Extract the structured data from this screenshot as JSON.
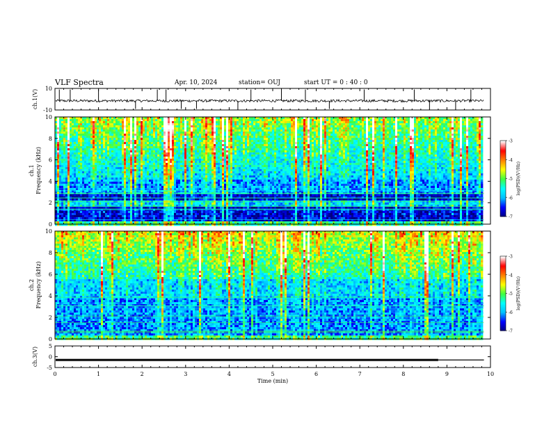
{
  "header": {
    "title": "VLF Spectra",
    "date": "Apr. 10, 2024",
    "station": "station= OUJ",
    "start": "start  UT =   0 : 40 : 0"
  },
  "chart_data": [
    {
      "type": "line",
      "panel": "ch1-waveform",
      "ylabel": "ch.1(V)",
      "ylim": [
        -10,
        10
      ],
      "yticks": [
        "10",
        "-10"
      ],
      "xlim": [
        0,
        10
      ],
      "baseline": -1.5,
      "noise_amplitude": 1.2,
      "spike_minutes": [
        0.1,
        0.35,
        1.0,
        1.85,
        2.35,
        2.55,
        2.9,
        3.25,
        4.2,
        4.5,
        5.2,
        5.75,
        6.3,
        7.1,
        8.25,
        8.6,
        9.2,
        9.55
      ]
    },
    {
      "type": "heatmap",
      "panel": "ch1-spectrogram",
      "ylabel": "ch.1\nFrequency (kHz)",
      "ylim": [
        0,
        10
      ],
      "yticks": [
        "0",
        "2",
        "4",
        "6",
        "8",
        "10"
      ],
      "xlim": [
        0,
        10
      ],
      "colorbar": {
        "label": "log(PSD)(V²/Hz)",
        "range": [
          -7,
          -3
        ],
        "ticks": [
          "-3",
          "-4",
          "-5",
          "-6",
          "-7"
        ]
      }
    },
    {
      "type": "heatmap",
      "panel": "ch2-spectrogram",
      "ylabel": "ch.2\nFrequency (kHz)",
      "ylim": [
        0,
        10
      ],
      "yticks": [
        "0",
        "2",
        "4",
        "6",
        "8",
        "10"
      ],
      "xlim": [
        0,
        10
      ],
      "colorbar": {
        "label": "log(PSD)(V²/Hz)",
        "range": [
          -7,
          -3
        ],
        "ticks": [
          "-3",
          "-4",
          "-5",
          "-6",
          "-7"
        ]
      }
    },
    {
      "type": "line",
      "panel": "ch3-waveform",
      "ylabel": "ch.3(V)",
      "ylim": [
        -5,
        5
      ],
      "yticks": [
        "5",
        "0",
        "-5"
      ],
      "xlim": [
        0,
        10
      ],
      "level": -1.5,
      "level_end_minute": 9.85,
      "thick_until_minute": 8.8,
      "xlabel": "Time  (min)",
      "xticks": [
        "0",
        "1",
        "2",
        "3",
        "4",
        "5",
        "6",
        "7",
        "8",
        "9",
        "10"
      ]
    }
  ],
  "colors": {
    "scale": [
      "#000080",
      "#0000ff",
      "#00bfff",
      "#00ffff",
      "#40ff40",
      "#ffff00",
      "#ff8000",
      "#ff0000",
      "#ffffff"
    ]
  }
}
